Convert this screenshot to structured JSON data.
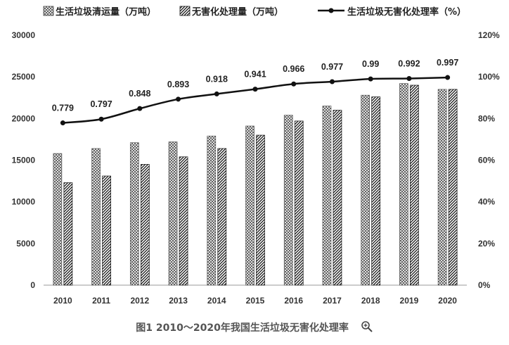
{
  "chart_data": {
    "type": "bar+line",
    "categories": [
      "2010",
      "2011",
      "2012",
      "2013",
      "2014",
      "2015",
      "2016",
      "2017",
      "2018",
      "2019",
      "2020"
    ],
    "series": [
      {
        "name": "生活垃圾清运量（万吨）",
        "type": "bar",
        "axis": "left",
        "pattern": "crosshatch",
        "values": [
          15800,
          16400,
          17100,
          17200,
          17900,
          19100,
          20400,
          21500,
          22800,
          24200,
          23500
        ]
      },
      {
        "name": "无害化处理量（万吨）",
        "type": "bar",
        "axis": "left",
        "pattern": "diagonal",
        "values": [
          12300,
          13100,
          14500,
          15400,
          16400,
          18000,
          19700,
          21000,
          22600,
          24000,
          23500
        ]
      },
      {
        "name": "生活垃圾无害化处理率（%）",
        "type": "line",
        "axis": "right",
        "marker": "circle",
        "values": [
          0.779,
          0.797,
          0.848,
          0.893,
          0.918,
          0.941,
          0.966,
          0.977,
          0.99,
          0.992,
          0.997
        ],
        "labels": [
          "0.779",
          "0.797",
          "0.848",
          "0.893",
          "0.918",
          "0.941",
          "0.966",
          "0.977",
          "0.99",
          "0.992",
          "0.997"
        ]
      }
    ],
    "y_left": {
      "range": [
        0,
        30000
      ],
      "ticks": [
        "0",
        "5000",
        "10000",
        "15000",
        "20000",
        "25000",
        "30000"
      ]
    },
    "y_right": {
      "range": [
        0,
        1.2
      ],
      "ticks": [
        "0%",
        "20%",
        "40%",
        "60%",
        "80%",
        "100%",
        "120%"
      ]
    },
    "legend_position": "top",
    "grid": false,
    "colors": {
      "bar_pattern": "#333333",
      "line": "#111111",
      "axis": "#888888"
    }
  },
  "caption": {
    "text": "图1 2010～2020年我国生活垃圾无害化处理率",
    "icon": "zoom-in-icon"
  }
}
